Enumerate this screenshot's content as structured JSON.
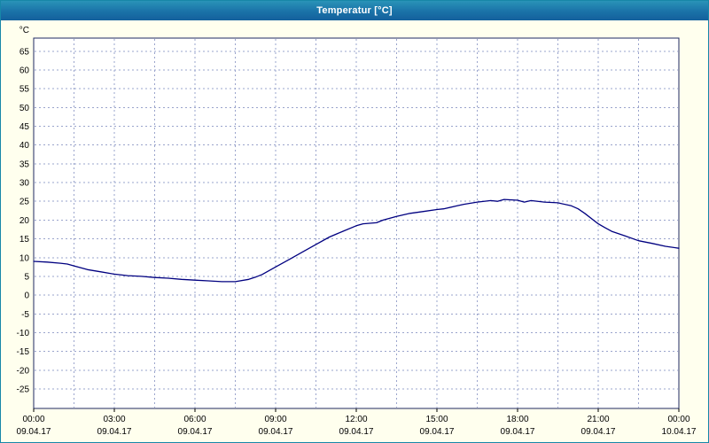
{
  "window": {
    "title": "Temperatur [°C]"
  },
  "chart_data": {
    "type": "line",
    "title": "Temperatur [°C]",
    "ylabel": "°C",
    "xlabel": "",
    "ylim": [
      -30.2,
      68.5
    ],
    "y_tick_step": 5,
    "y_ticks": [
      65,
      60,
      55,
      50,
      45,
      40,
      35,
      30,
      25,
      20,
      15,
      10,
      5,
      0,
      -5,
      -10,
      -15,
      -20,
      -25
    ],
    "x_range_hours": [
      0,
      24
    ],
    "x_minor_grid_step_hours": 1.5,
    "grid": true,
    "legend_position": "none",
    "x_ticks": [
      {
        "hour": 0,
        "time": "00:00",
        "date": "09.04.17"
      },
      {
        "hour": 3,
        "time": "03:00",
        "date": "09.04.17"
      },
      {
        "hour": 6,
        "time": "06:00",
        "date": "09.04.17"
      },
      {
        "hour": 9,
        "time": "09:00",
        "date": "09.04.17"
      },
      {
        "hour": 12,
        "time": "12:00",
        "date": "09.04.17"
      },
      {
        "hour": 15,
        "time": "15:00",
        "date": "09.04.17"
      },
      {
        "hour": 18,
        "time": "18:00",
        "date": "09.04.17"
      },
      {
        "hour": 21,
        "time": "21:00",
        "date": "09.04.17"
      },
      {
        "hour": 24,
        "time": "00:00",
        "date": "10.04.17"
      }
    ],
    "series": [
      {
        "name": "Temperatur",
        "color": "#000080",
        "points_hour_degC": [
          [
            0,
            9.0
          ],
          [
            0.5,
            8.8
          ],
          [
            1,
            8.5
          ],
          [
            1.25,
            8.3
          ],
          [
            1.5,
            7.8
          ],
          [
            2,
            6.8
          ],
          [
            2.5,
            6.2
          ],
          [
            3,
            5.6
          ],
          [
            3.5,
            5.2
          ],
          [
            4,
            5.0
          ],
          [
            4.5,
            4.7
          ],
          [
            5,
            4.5
          ],
          [
            5.5,
            4.2
          ],
          [
            6,
            4.0
          ],
          [
            6.5,
            3.8
          ],
          [
            7,
            3.6
          ],
          [
            7.5,
            3.6
          ],
          [
            8,
            4.2
          ],
          [
            8.25,
            4.8
          ],
          [
            8.5,
            5.5
          ],
          [
            9,
            7.5
          ],
          [
            9.5,
            9.5
          ],
          [
            10,
            11.5
          ],
          [
            10.5,
            13.5
          ],
          [
            11,
            15.5
          ],
          [
            11.5,
            17.0
          ],
          [
            12,
            18.5
          ],
          [
            12.25,
            19.0
          ],
          [
            12.75,
            19.3
          ],
          [
            13,
            20.0
          ],
          [
            13.5,
            21.0
          ],
          [
            14,
            21.8
          ],
          [
            14.5,
            22.3
          ],
          [
            15,
            22.8
          ],
          [
            15.25,
            23.0
          ],
          [
            15.75,
            23.8
          ],
          [
            16,
            24.2
          ],
          [
            16.5,
            24.8
          ],
          [
            17,
            25.2
          ],
          [
            17.25,
            25.0
          ],
          [
            17.5,
            25.5
          ],
          [
            18,
            25.3
          ],
          [
            18.25,
            24.8
          ],
          [
            18.5,
            25.2
          ],
          [
            19,
            24.8
          ],
          [
            19.5,
            24.6
          ],
          [
            20,
            23.8
          ],
          [
            20.25,
            23.0
          ],
          [
            20.5,
            21.8
          ],
          [
            21,
            19.0
          ],
          [
            21.25,
            18.0
          ],
          [
            21.5,
            17.0
          ],
          [
            22,
            15.8
          ],
          [
            22.5,
            14.5
          ],
          [
            23,
            13.8
          ],
          [
            23.5,
            13.0
          ],
          [
            24,
            12.5
          ]
        ]
      }
    ]
  },
  "colors": {
    "window_background": "#FFFFEE",
    "plot_background": "#FFFFFF",
    "grid_line": "#9AA4CC",
    "plot_border": "#1F2A60",
    "series_line": "#000080",
    "titlebar_top": "#2A93B8",
    "titlebar_bottom": "#14609C",
    "title_text": "#FFFFFF",
    "axis_text": "#000000"
  }
}
